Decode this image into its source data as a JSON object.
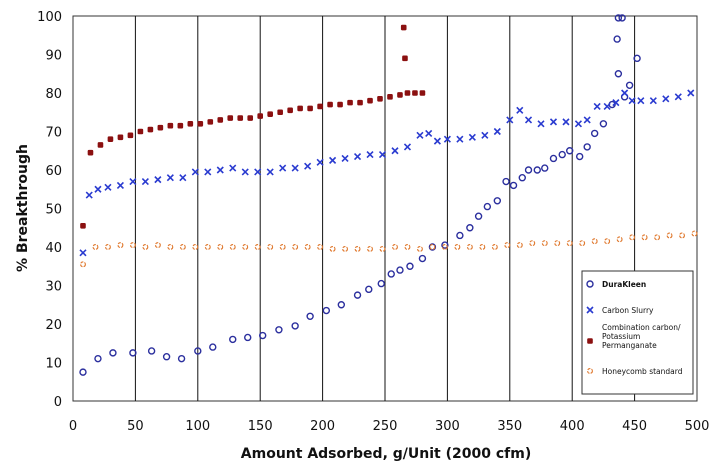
{
  "chart_data": {
    "type": "scatter",
    "title": "",
    "xlabel": "Amount Adsorbed, g/Unit (2000 cfm)",
    "ylabel": "% Breakthrough",
    "xlim": [
      0,
      500
    ],
    "ylim": [
      0,
      100
    ],
    "x_ticks": [
      "0",
      "50",
      "100",
      "150",
      "200",
      "250",
      "300",
      "350",
      "400",
      "450",
      "500"
    ],
    "y_ticks": [
      "0",
      "10",
      "20",
      "30",
      "40",
      "50",
      "60",
      "70",
      "80",
      "90",
      "100"
    ],
    "vertical_gridlines": [
      50,
      100,
      150,
      200,
      250,
      300,
      350,
      400,
      450
    ],
    "legend_position": "bottom-right",
    "series": [
      {
        "name": "DuraKleen",
        "marker": "open-circle",
        "color": "#2b2f9e",
        "points": [
          [
            8,
            7.5
          ],
          [
            20,
            11
          ],
          [
            32,
            12.5
          ],
          [
            48,
            12.5
          ],
          [
            63,
            13
          ],
          [
            75,
            11.5
          ],
          [
            87,
            11
          ],
          [
            100,
            13
          ],
          [
            112,
            14
          ],
          [
            128,
            16
          ],
          [
            140,
            16.5
          ],
          [
            152,
            17
          ],
          [
            165,
            18.5
          ],
          [
            178,
            19.5
          ],
          [
            190,
            22
          ],
          [
            203,
            23.5
          ],
          [
            215,
            25
          ],
          [
            228,
            27.5
          ],
          [
            237,
            29
          ],
          [
            247,
            30.5
          ],
          [
            255,
            33
          ],
          [
            262,
            34
          ],
          [
            270,
            35
          ],
          [
            280,
            37
          ],
          [
            288,
            40
          ],
          [
            298,
            40.5
          ],
          [
            310,
            43
          ],
          [
            318,
            45
          ],
          [
            325,
            48
          ],
          [
            332,
            50.5
          ],
          [
            340,
            52
          ],
          [
            347,
            57
          ],
          [
            353,
            56
          ],
          [
            360,
            58
          ],
          [
            365,
            60
          ],
          [
            372,
            60
          ],
          [
            378,
            60.5
          ],
          [
            385,
            63
          ],
          [
            392,
            64
          ],
          [
            398,
            65
          ],
          [
            406,
            63.5
          ],
          [
            412,
            66
          ],
          [
            418,
            69.5
          ],
          [
            425,
            72
          ],
          [
            432,
            77
          ],
          [
            437,
            85
          ],
          [
            436,
            94
          ],
          [
            437,
            99.5
          ],
          [
            440,
            99.5
          ],
          [
            442,
            79
          ],
          [
            446,
            82
          ],
          [
            452,
            89
          ]
        ]
      },
      {
        "name": "Carbon Slurry",
        "marker": "x",
        "color": "#2a3bd0",
        "points": [
          [
            8,
            38.5
          ],
          [
            13,
            53.5
          ],
          [
            20,
            55
          ],
          [
            28,
            55.5
          ],
          [
            38,
            56
          ],
          [
            48,
            57
          ],
          [
            58,
            57
          ],
          [
            68,
            57.5
          ],
          [
            78,
            58
          ],
          [
            88,
            58
          ],
          [
            98,
            59.5
          ],
          [
            108,
            59.5
          ],
          [
            118,
            60
          ],
          [
            128,
            60.5
          ],
          [
            138,
            59.5
          ],
          [
            148,
            59.5
          ],
          [
            158,
            59.5
          ],
          [
            168,
            60.5
          ],
          [
            178,
            60.5
          ],
          [
            188,
            61
          ],
          [
            198,
            62
          ],
          [
            208,
            62.5
          ],
          [
            218,
            63
          ],
          [
            228,
            63.5
          ],
          [
            238,
            64
          ],
          [
            248,
            64
          ],
          [
            258,
            65
          ],
          [
            268,
            66
          ],
          [
            278,
            69
          ],
          [
            285,
            69.5
          ],
          [
            292,
            67.5
          ],
          [
            300,
            68
          ],
          [
            310,
            68
          ],
          [
            320,
            68.5
          ],
          [
            330,
            69
          ],
          [
            340,
            70
          ],
          [
            350,
            73
          ],
          [
            358,
            75.5
          ],
          [
            365,
            73
          ],
          [
            375,
            72
          ],
          [
            385,
            72.5
          ],
          [
            395,
            72.5
          ],
          [
            405,
            72
          ],
          [
            412,
            73
          ],
          [
            420,
            76.5
          ],
          [
            428,
            76.5
          ],
          [
            435,
            77.5
          ],
          [
            442,
            80
          ],
          [
            448,
            78
          ],
          [
            455,
            78
          ],
          [
            465,
            78
          ],
          [
            475,
            78.5
          ],
          [
            485,
            79
          ],
          [
            495,
            80
          ]
        ]
      },
      {
        "name": "Combination carbon/ Potassium Permanganate",
        "marker": "filled-square",
        "color": "#8b1010",
        "points": [
          [
            8,
            45.5
          ],
          [
            14,
            64.5
          ],
          [
            22,
            66.5
          ],
          [
            30,
            68
          ],
          [
            38,
            68.5
          ],
          [
            46,
            69
          ],
          [
            54,
            70
          ],
          [
            62,
            70.5
          ],
          [
            70,
            71
          ],
          [
            78,
            71.5
          ],
          [
            86,
            71.5
          ],
          [
            94,
            72
          ],
          [
            102,
            72
          ],
          [
            110,
            72.5
          ],
          [
            118,
            73
          ],
          [
            126,
            73.5
          ],
          [
            134,
            73.5
          ],
          [
            142,
            73.5
          ],
          [
            150,
            74
          ],
          [
            158,
            74.5
          ],
          [
            166,
            75
          ],
          [
            174,
            75.5
          ],
          [
            182,
            76
          ],
          [
            190,
            76
          ],
          [
            198,
            76.5
          ],
          [
            206,
            77
          ],
          [
            214,
            77
          ],
          [
            222,
            77.5
          ],
          [
            230,
            77.5
          ],
          [
            238,
            78
          ],
          [
            246,
            78.5
          ],
          [
            254,
            79
          ],
          [
            262,
            79.5
          ],
          [
            268,
            80
          ],
          [
            274,
            80
          ],
          [
            280,
            80
          ],
          [
            265,
            97
          ],
          [
            266,
            89
          ]
        ]
      },
      {
        "name": "Honeycomb standard",
        "marker": "open-circle-small",
        "color": "#e07a30",
        "points": [
          [
            8,
            35.5
          ],
          [
            18,
            40
          ],
          [
            28,
            40
          ],
          [
            38,
            40.5
          ],
          [
            48,
            40.5
          ],
          [
            58,
            40
          ],
          [
            68,
            40.5
          ],
          [
            78,
            40
          ],
          [
            88,
            40
          ],
          [
            98,
            40
          ],
          [
            108,
            40
          ],
          [
            118,
            40
          ],
          [
            128,
            40
          ],
          [
            138,
            40
          ],
          [
            148,
            40
          ],
          [
            158,
            40
          ],
          [
            168,
            40
          ],
          [
            178,
            40
          ],
          [
            188,
            40
          ],
          [
            198,
            40
          ],
          [
            208,
            39.5
          ],
          [
            218,
            39.5
          ],
          [
            228,
            39.5
          ],
          [
            238,
            39.5
          ],
          [
            248,
            39.5
          ],
          [
            258,
            40
          ],
          [
            268,
            40
          ],
          [
            278,
            39.5
          ],
          [
            288,
            40
          ],
          [
            298,
            40
          ],
          [
            308,
            40
          ],
          [
            318,
            40
          ],
          [
            328,
            40
          ],
          [
            338,
            40
          ],
          [
            348,
            40.5
          ],
          [
            358,
            40.5
          ],
          [
            368,
            41
          ],
          [
            378,
            41
          ],
          [
            388,
            41
          ],
          [
            398,
            41
          ],
          [
            408,
            41
          ],
          [
            418,
            41.5
          ],
          [
            428,
            41.5
          ],
          [
            438,
            42
          ],
          [
            448,
            42.5
          ],
          [
            458,
            42.5
          ],
          [
            468,
            42.5
          ],
          [
            478,
            43
          ],
          [
            488,
            43
          ],
          [
            498,
            43.5
          ]
        ]
      }
    ]
  }
}
